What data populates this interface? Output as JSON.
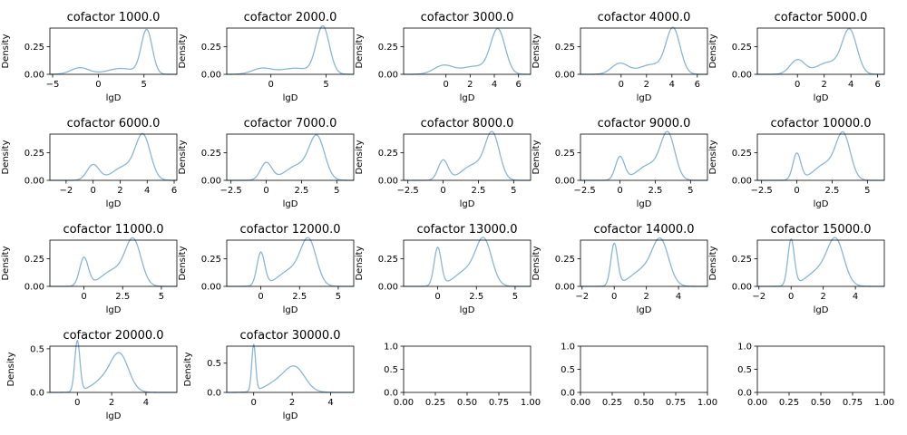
{
  "chart_data": [
    {
      "type": "area",
      "title": "cofactor 1000.0",
      "xlabel": "lgD",
      "ylabel": "Density",
      "xlim": [
        -5.3,
        8.6
      ],
      "ylim": [
        0,
        0.42
      ],
      "xticks": [
        -5,
        0,
        5
      ],
      "yticks": [
        0.0,
        0.25
      ],
      "ytick_labels": [
        "0.00",
        "0.25"
      ],
      "components": [
        {
          "mu": -2.0,
          "sigma": 1.0,
          "w": 0.15
        },
        {
          "mu": 2.5,
          "sigma": 1.5,
          "w": 0.2
        },
        {
          "mu": 5.3,
          "sigma": 0.6,
          "w": 0.6
        }
      ]
    },
    {
      "type": "area",
      "title": "cofactor 2000.0",
      "xlabel": "lgD",
      "ylabel": "Density",
      "xlim": [
        -4.0,
        7.5
      ],
      "ylim": [
        0,
        0.42
      ],
      "xticks": [
        0,
        5
      ],
      "yticks": [
        0.0,
        0.25
      ],
      "ytick_labels": [
        "0.00",
        "0.25"
      ],
      "components": [
        {
          "mu": -0.8,
          "sigma": 0.9,
          "w": 0.12
        },
        {
          "mu": 2.2,
          "sigma": 1.3,
          "w": 0.18
        },
        {
          "mu": 4.7,
          "sigma": 0.6,
          "w": 0.65
        }
      ]
    },
    {
      "type": "area",
      "title": "cofactor 3000.0",
      "xlabel": "lgD",
      "ylabel": "Density",
      "xlim": [
        -3.5,
        7.0
      ],
      "ylim": [
        0,
        0.42
      ],
      "xticks": [
        0,
        2,
        4,
        6
      ],
      "yticks": [
        0.0,
        0.25
      ],
      "ytick_labels": [
        "0.00",
        "0.25"
      ],
      "components": [
        {
          "mu": -0.2,
          "sigma": 0.8,
          "w": 0.16
        },
        {
          "mu": 2.4,
          "sigma": 1.1,
          "w": 0.2
        },
        {
          "mu": 4.3,
          "sigma": 0.6,
          "w": 0.6
        }
      ]
    },
    {
      "type": "area",
      "title": "cofactor 4000.0",
      "xlabel": "lgD",
      "ylabel": "Density",
      "xlim": [
        -3.2,
        6.8
      ],
      "ylim": [
        0,
        0.42
      ],
      "xticks": [
        0,
        2,
        4,
        6
      ],
      "yticks": [
        0.0,
        0.25
      ],
      "ytick_labels": [
        "0.00",
        "0.25"
      ],
      "components": [
        {
          "mu": -0.1,
          "sigma": 0.65,
          "w": 0.16
        },
        {
          "mu": 2.4,
          "sigma": 1.0,
          "w": 0.22
        },
        {
          "mu": 4.1,
          "sigma": 0.55,
          "w": 0.56
        }
      ]
    },
    {
      "type": "area",
      "title": "cofactor 5000.0",
      "xlabel": "lgD",
      "ylabel": "Density",
      "xlim": [
        -3.0,
        6.5
      ],
      "ylim": [
        0,
        0.42
      ],
      "xticks": [
        0,
        2,
        4,
        6
      ],
      "yticks": [
        0.0,
        0.25
      ],
      "ytick_labels": [
        "0.00",
        "0.25"
      ],
      "components": [
        {
          "mu": 0.0,
          "sigma": 0.55,
          "w": 0.18
        },
        {
          "mu": 2.3,
          "sigma": 0.9,
          "w": 0.24
        },
        {
          "mu": 3.9,
          "sigma": 0.55,
          "w": 0.54
        }
      ]
    },
    {
      "type": "area",
      "title": "cofactor 6000.0",
      "xlabel": "lgD",
      "ylabel": "Density",
      "xlim": [
        -3.2,
        6.2
      ],
      "ylim": [
        0,
        0.42
      ],
      "xticks": [
        -2,
        0,
        2,
        4,
        6
      ],
      "yticks": [
        0.0,
        0.25
      ],
      "ytick_labels": [
        "0.00",
        "0.25"
      ],
      "components": [
        {
          "mu": 0.0,
          "sigma": 0.45,
          "w": 0.16
        },
        {
          "mu": 2.3,
          "sigma": 0.85,
          "w": 0.26
        },
        {
          "mu": 3.7,
          "sigma": 0.55,
          "w": 0.54
        }
      ]
    },
    {
      "type": "area",
      "title": "cofactor 7000.0",
      "xlabel": "lgD",
      "ylabel": "Density",
      "xlim": [
        -2.8,
        6.2
      ],
      "ylim": [
        0,
        0.42
      ],
      "xticks": [
        -2.5,
        0.0,
        2.5,
        5.0
      ],
      "yticks": [
        0.0,
        0.25
      ],
      "ytick_labels": [
        "0.00",
        "0.25"
      ],
      "components": [
        {
          "mu": 0.0,
          "sigma": 0.4,
          "w": 0.16
        },
        {
          "mu": 2.2,
          "sigma": 0.85,
          "w": 0.28
        },
        {
          "mu": 3.6,
          "sigma": 0.55,
          "w": 0.52
        }
      ]
    },
    {
      "type": "area",
      "title": "cofactor 8000.0",
      "xlabel": "lgD",
      "ylabel": "Density",
      "xlim": [
        -2.8,
        6.2
      ],
      "ylim": [
        0,
        0.42
      ],
      "xticks": [
        -2.5,
        0.0,
        2.5,
        5.0
      ],
      "yticks": [
        0.0,
        0.25
      ],
      "ytick_labels": [
        "0.00",
        "0.25"
      ],
      "components": [
        {
          "mu": 0.0,
          "sigma": 0.35,
          "w": 0.16
        },
        {
          "mu": 2.2,
          "sigma": 0.85,
          "w": 0.3
        },
        {
          "mu": 3.5,
          "sigma": 0.5,
          "w": 0.5
        }
      ]
    },
    {
      "type": "area",
      "title": "cofactor 9000.0",
      "xlabel": "lgD",
      "ylabel": "Density",
      "xlim": [
        -2.8,
        6.2
      ],
      "ylim": [
        0,
        0.42
      ],
      "xticks": [
        -2.5,
        0.0,
        2.5,
        5.0
      ],
      "yticks": [
        0.0,
        0.25
      ],
      "ytick_labels": [
        "0.00",
        "0.25"
      ],
      "components": [
        {
          "mu": 0.0,
          "sigma": 0.32,
          "w": 0.17
        },
        {
          "mu": 2.1,
          "sigma": 0.85,
          "w": 0.3
        },
        {
          "mu": 3.4,
          "sigma": 0.5,
          "w": 0.5
        }
      ]
    },
    {
      "type": "area",
      "title": "cofactor 10000.0",
      "xlabel": "lgD",
      "ylabel": "Density",
      "xlim": [
        -2.8,
        6.2
      ],
      "ylim": [
        0,
        0.42
      ],
      "xticks": [
        -2.5,
        0.0,
        2.5,
        5.0
      ],
      "yticks": [
        0.0,
        0.25
      ],
      "ytick_labels": [
        "0.00",
        "0.25"
      ],
      "components": [
        {
          "mu": 0.0,
          "sigma": 0.28,
          "w": 0.17
        },
        {
          "mu": 2.1,
          "sigma": 0.85,
          "w": 0.32
        },
        {
          "mu": 3.3,
          "sigma": 0.5,
          "w": 0.48
        }
      ]
    },
    {
      "type": "area",
      "title": "cofactor 11000.0",
      "xlabel": "lgD",
      "ylabel": "Density",
      "xlim": [
        -2.2,
        6.0
      ],
      "ylim": [
        0,
        0.42
      ],
      "xticks": [
        0.0,
        2.5,
        5.0
      ],
      "yticks": [
        0.0,
        0.25
      ],
      "ytick_labels": [
        "0.00",
        "0.25"
      ],
      "components": [
        {
          "mu": 0.0,
          "sigma": 0.28,
          "w": 0.18
        },
        {
          "mu": 2.0,
          "sigma": 0.85,
          "w": 0.32
        },
        {
          "mu": 3.2,
          "sigma": 0.5,
          "w": 0.48
        }
      ]
    },
    {
      "type": "area",
      "title": "cofactor 12000.0",
      "xlabel": "lgD",
      "ylabel": "Density",
      "xlim": [
        -2.2,
        6.0
      ],
      "ylim": [
        0,
        0.42
      ],
      "xticks": [
        0.0,
        2.5,
        5.0
      ],
      "yticks": [
        0.0,
        0.25
      ],
      "ytick_labels": [
        "0.00",
        "0.25"
      ],
      "components": [
        {
          "mu": 0.0,
          "sigma": 0.25,
          "w": 0.19
        },
        {
          "mu": 2.0,
          "sigma": 0.85,
          "w": 0.32
        },
        {
          "mu": 3.1,
          "sigma": 0.5,
          "w": 0.47
        }
      ]
    },
    {
      "type": "area",
      "title": "cofactor 13000.0",
      "xlabel": "lgD",
      "ylabel": "Density",
      "xlim": [
        -2.2,
        6.0
      ],
      "ylim": [
        0,
        0.42
      ],
      "xticks": [
        0.0,
        2.5,
        5.0
      ],
      "yticks": [
        0.0,
        0.25
      ],
      "ytick_labels": [
        "0.00",
        "0.25"
      ],
      "components": [
        {
          "mu": 0.0,
          "sigma": 0.23,
          "w": 0.2
        },
        {
          "mu": 2.0,
          "sigma": 0.85,
          "w": 0.32
        },
        {
          "mu": 3.0,
          "sigma": 0.5,
          "w": 0.46
        }
      ]
    },
    {
      "type": "area",
      "title": "cofactor 14000.0",
      "xlabel": "lgD",
      "ylabel": "Density",
      "xlim": [
        -2.1,
        5.8
      ],
      "ylim": [
        0,
        0.42
      ],
      "xticks": [
        -2,
        0,
        2,
        4
      ],
      "yticks": [
        0.0,
        0.25
      ],
      "ytick_labels": [
        "0.00",
        "0.25"
      ],
      "components": [
        {
          "mu": 0.0,
          "sigma": 0.21,
          "w": 0.2
        },
        {
          "mu": 1.9,
          "sigma": 0.85,
          "w": 0.33
        },
        {
          "mu": 2.9,
          "sigma": 0.5,
          "w": 0.45
        }
      ]
    },
    {
      "type": "area",
      "title": "cofactor 15000.0",
      "xlabel": "lgD",
      "ylabel": "Density",
      "xlim": [
        -2.1,
        5.8
      ],
      "ylim": [
        0,
        0.42
      ],
      "xticks": [
        -2,
        0,
        2,
        4
      ],
      "yticks": [
        0.0,
        0.25
      ],
      "ytick_labels": [
        "0.00",
        "0.25"
      ],
      "components": [
        {
          "mu": 0.0,
          "sigma": 0.2,
          "w": 0.21
        },
        {
          "mu": 1.9,
          "sigma": 0.85,
          "w": 0.33
        },
        {
          "mu": 2.8,
          "sigma": 0.5,
          "w": 0.44
        }
      ]
    },
    {
      "type": "area",
      "title": "cofactor 20000.0",
      "xlabel": "lgD",
      "ylabel": "Density",
      "xlim": [
        -1.6,
        5.8
      ],
      "ylim": [
        0,
        0.53
      ],
      "xticks": [
        0,
        2,
        4
      ],
      "yticks": [
        0.0,
        0.5
      ],
      "ytick_labels": [
        "0.0",
        "0.5"
      ],
      "components": [
        {
          "mu": 0.0,
          "sigma": 0.15,
          "w": 0.22
        },
        {
          "mu": 1.8,
          "sigma": 0.8,
          "w": 0.34
        },
        {
          "mu": 2.5,
          "sigma": 0.5,
          "w": 0.42
        }
      ]
    },
    {
      "type": "area",
      "title": "cofactor 30000.0",
      "xlabel": "lgD",
      "ylabel": "Density",
      "xlim": [
        -1.4,
        5.2
      ],
      "ylim": [
        0,
        0.79
      ],
      "xticks": [
        0,
        2,
        4
      ],
      "yticks": [
        0.0,
        0.5
      ],
      "ytick_labels": [
        "0.0",
        "0.5"
      ],
      "components": [
        {
          "mu": 0.0,
          "sigma": 0.1,
          "w": 0.2
        },
        {
          "mu": 1.5,
          "sigma": 0.75,
          "w": 0.4
        },
        {
          "mu": 2.2,
          "sigma": 0.5,
          "w": 0.38
        }
      ]
    },
    {
      "type": "empty",
      "title": "",
      "xlim": [
        0,
        1
      ],
      "ylim": [
        0,
        1
      ],
      "xticks": [
        0,
        0.25,
        0.5,
        0.75,
        1.0
      ],
      "yticks": [
        0,
        0.5,
        1.0
      ],
      "xtick_labels": [
        "0.00",
        "0.25",
        "0.50",
        "0.75",
        "1.00"
      ],
      "ytick_labels": [
        "0.0",
        "0.5",
        "1.0"
      ]
    },
    {
      "type": "empty",
      "title": "",
      "xlim": [
        0,
        1
      ],
      "ylim": [
        0,
        1
      ],
      "xticks": [
        0,
        0.25,
        0.5,
        0.75,
        1.0
      ],
      "yticks": [
        0,
        0.5,
        1.0
      ],
      "xtick_labels": [
        "0.00",
        "0.25",
        "0.50",
        "0.75",
        "1.00"
      ],
      "ytick_labels": [
        "0.0",
        "0.5",
        "1.0"
      ]
    },
    {
      "type": "empty",
      "title": "",
      "xlim": [
        0,
        1
      ],
      "ylim": [
        0,
        1
      ],
      "xticks": [
        0,
        0.25,
        0.5,
        0.75,
        1.0
      ],
      "yticks": [
        0,
        0.5,
        1.0
      ],
      "xtick_labels": [
        "0.00",
        "0.25",
        "0.50",
        "0.75",
        "1.00"
      ],
      "ytick_labels": [
        "0.0",
        "0.5",
        "1.0"
      ]
    }
  ],
  "style": {
    "line_color": "#8ab6d6",
    "axis_color": "#000000",
    "background": "#ffffff"
  }
}
